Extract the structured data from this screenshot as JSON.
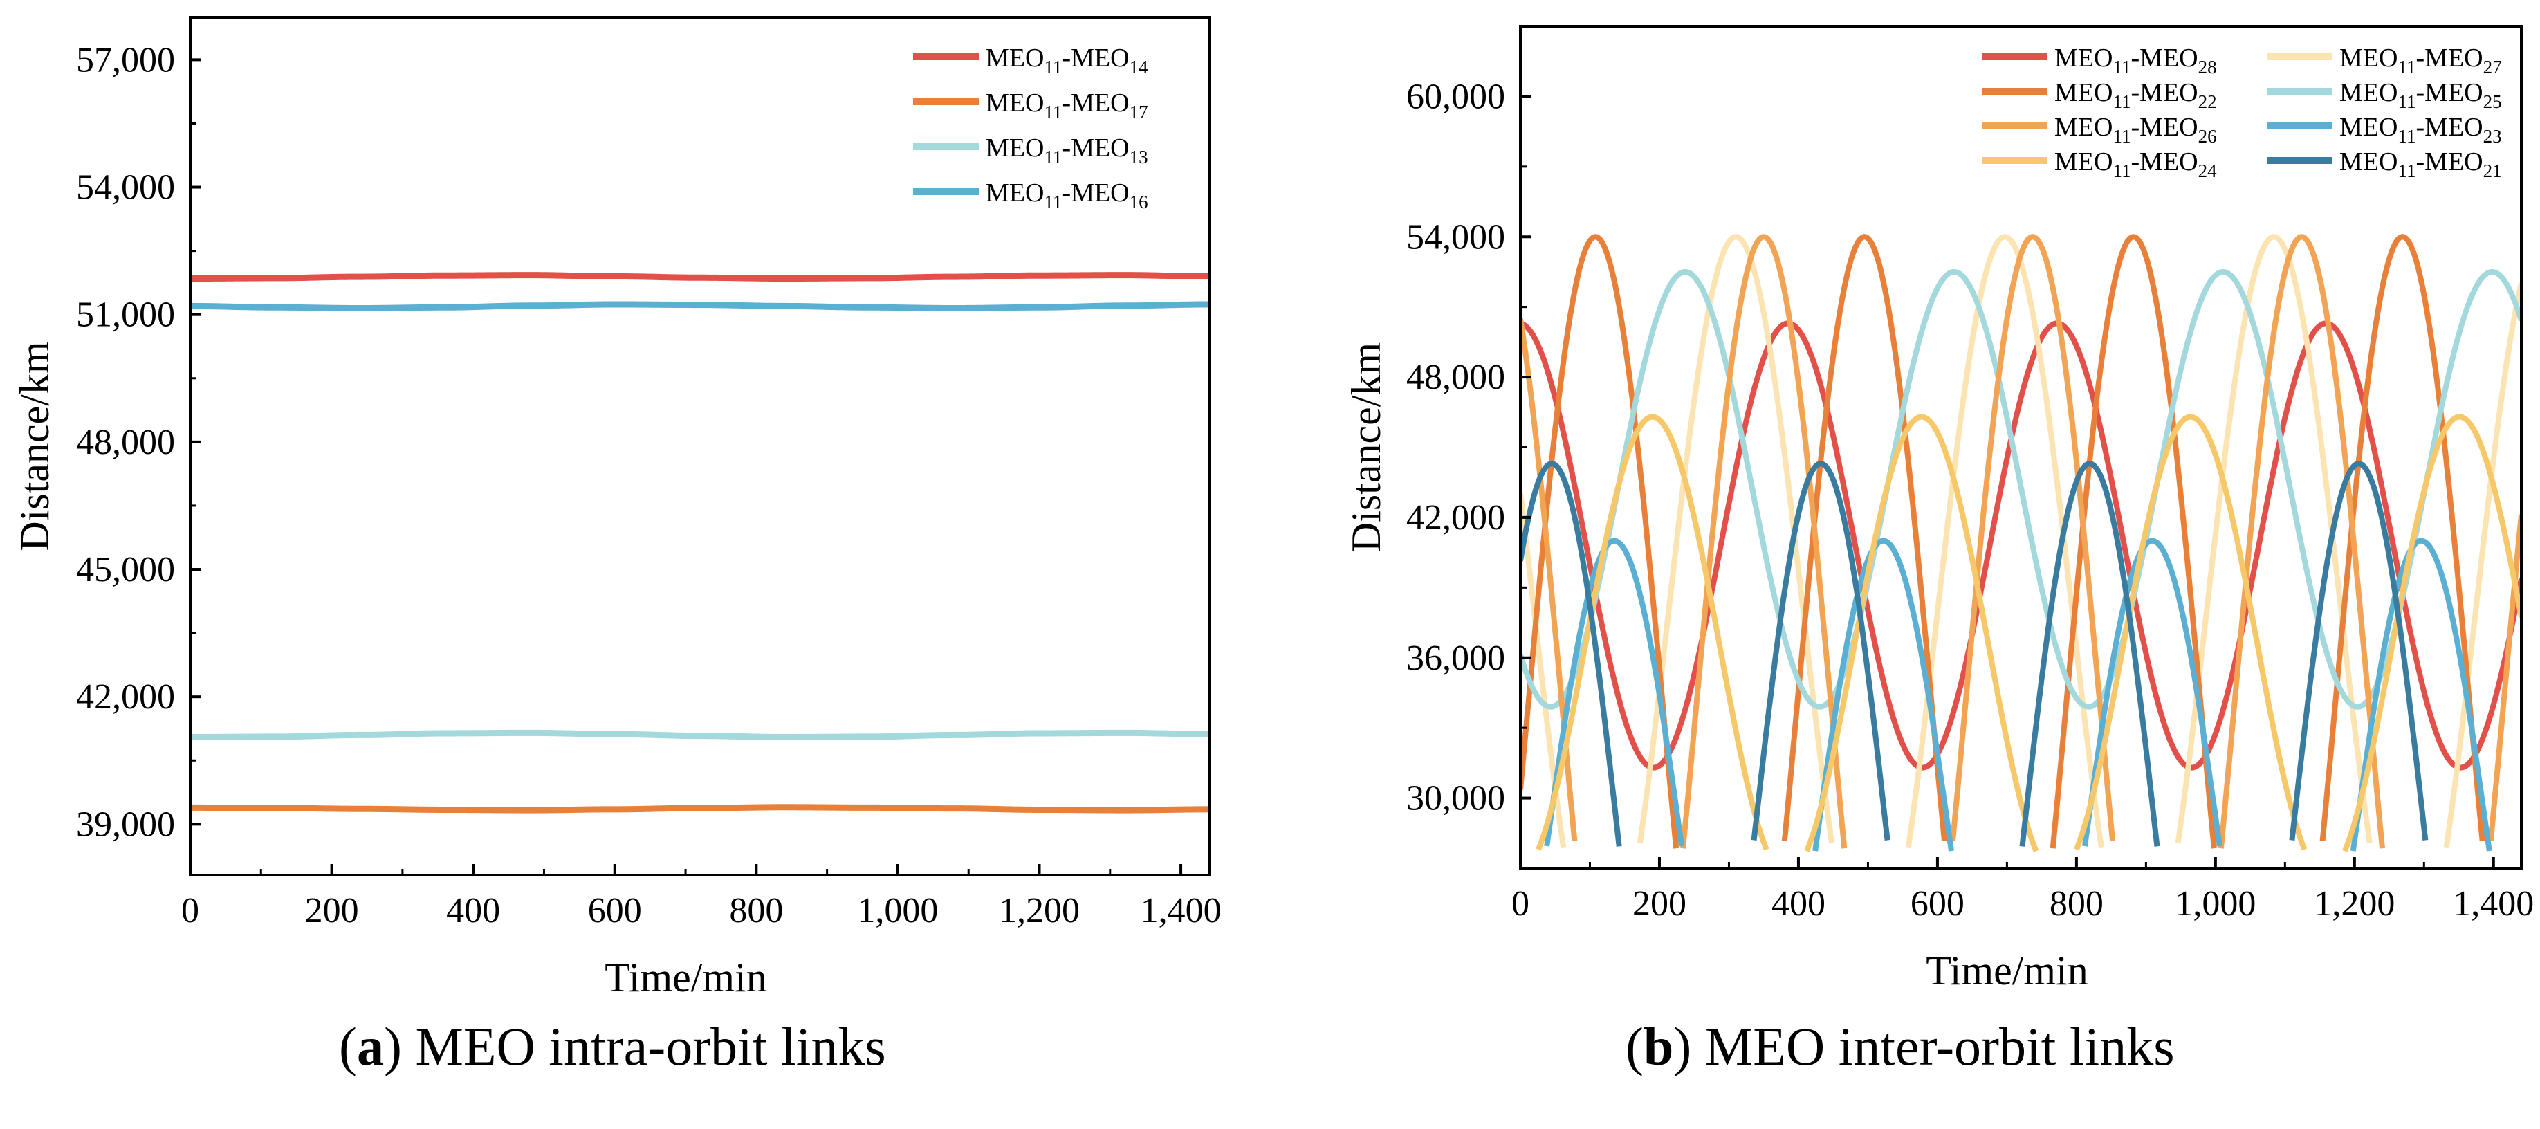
{
  "chart_data": [
    {
      "type": "line",
      "panel": "a",
      "caption_letter": "a",
      "caption_text": " MEO intra-orbit links",
      "xlabel": "Time/min",
      "ylabel": "Distance/km",
      "xlim": [
        0,
        1440
      ],
      "ylim": [
        37800,
        58000
      ],
      "xticks": [
        0,
        200,
        400,
        600,
        800,
        1000,
        1200,
        1400
      ],
      "xtick_labels": [
        "0",
        "200",
        "400",
        "600",
        "800",
        "1,000",
        "1,200",
        "1,400"
      ],
      "yticks": [
        39000,
        42000,
        45000,
        48000,
        51000,
        54000,
        57000
      ],
      "ytick_labels": [
        "39,000",
        "42,000",
        "45,000",
        "48,000",
        "51,000",
        "54,000",
        "57,000"
      ],
      "legend_position": "top-right",
      "series": [
        {
          "name": "MEO11-MEO14",
          "label_main": "MEO",
          "sub1": "11",
          "mid": "-MEO",
          "sub2": "14",
          "color": "#e2504a",
          "x": [
            0,
            120,
            240,
            360,
            480,
            600,
            720,
            840,
            960,
            1080,
            1200,
            1320,
            1440
          ],
          "values": [
            51850,
            51860,
            51890,
            51920,
            51930,
            51900,
            51870,
            51850,
            51860,
            51890,
            51920,
            51930,
            51900
          ]
        },
        {
          "name": "MEO11-MEO17",
          "label_main": "MEO",
          "sub1": "11",
          "mid": "-MEO",
          "sub2": "17",
          "color": "#e8803a",
          "x": [
            0,
            120,
            240,
            360,
            480,
            600,
            720,
            840,
            960,
            1080,
            1200,
            1320,
            1440
          ],
          "values": [
            39390,
            39380,
            39360,
            39340,
            39330,
            39350,
            39380,
            39400,
            39390,
            39370,
            39340,
            39330,
            39350
          ]
        },
        {
          "name": "MEO11-MEO13",
          "label_main": "MEO",
          "sub1": "11",
          "mid": "-MEO",
          "sub2": "13",
          "color": "#a3d8dc",
          "x": [
            0,
            120,
            240,
            360,
            480,
            600,
            720,
            840,
            960,
            1080,
            1200,
            1320,
            1440
          ],
          "values": [
            41050,
            41060,
            41100,
            41140,
            41150,
            41120,
            41080,
            41050,
            41060,
            41100,
            41140,
            41150,
            41120
          ]
        },
        {
          "name": "MEO11-MEO16",
          "label_main": "MEO",
          "sub1": "11",
          "mid": "-MEO",
          "sub2": "16",
          "color": "#5aafd2",
          "x": [
            0,
            120,
            240,
            360,
            480,
            600,
            720,
            840,
            960,
            1080,
            1200,
            1320,
            1440
          ],
          "values": [
            51200,
            51170,
            51150,
            51170,
            51210,
            51240,
            51230,
            51200,
            51170,
            51150,
            51170,
            51210,
            51240
          ]
        }
      ]
    },
    {
      "type": "line",
      "panel": "b",
      "caption_letter": "b",
      "caption_text": " MEO inter-orbit links",
      "xlabel": "Time/min",
      "ylabel": "Distance/km",
      "xlim": [
        0,
        1440
      ],
      "ylim": [
        27000,
        63000
      ],
      "xticks": [
        0,
        200,
        400,
        600,
        800,
        1000,
        1200,
        1400
      ],
      "xtick_labels": [
        "0",
        "200",
        "400",
        "600",
        "800",
        "1,000",
        "1,200",
        "1,400"
      ],
      "yticks": [
        30000,
        36000,
        42000,
        48000,
        54000,
        60000
      ],
      "ytick_labels": [
        "30,000",
        "36,000",
        "42,000",
        "48,000",
        "54,000",
        "60,000"
      ],
      "legend_position": "top-right",
      "series": [
        {
          "name": "MEO11-MEO28",
          "label_main": "MEO",
          "sub1": "11",
          "mid": "-MEO",
          "sub2": "28",
          "color": "#e2504a",
          "center": 40800,
          "amplitude": 9500,
          "period": 387,
          "peak_at": 385
        },
        {
          "name": "MEO11-MEO27",
          "label_main": "MEO",
          "sub1": "11",
          "mid": "-MEO",
          "sub2": "27",
          "color": "#fbe3b2",
          "center": 38000,
          "amplitude": 16000,
          "period": 387,
          "peak_at": 310
        },
        {
          "name": "MEO11-MEO22",
          "label_main": "MEO",
          "sub1": "11",
          "mid": "-MEO",
          "sub2": "22",
          "color": "#e8803a",
          "center": 34000,
          "amplitude": 20000,
          "period": 387,
          "peak_at": 495
        },
        {
          "name": "MEO11-MEO25",
          "label_main": "MEO",
          "sub1": "11",
          "mid": "-MEO",
          "sub2": "25",
          "color": "#a3d8dc",
          "center": 43200,
          "amplitude": 9300,
          "period": 387,
          "peak_at": 237
        },
        {
          "name": "MEO11-MEO26",
          "label_main": "MEO",
          "sub1": "11",
          "mid": "-MEO",
          "sub2": "26",
          "color": "#f2a354",
          "center": 34000,
          "amplitude": 20000,
          "period": 387,
          "peak_at": 350
        },
        {
          "name": "MEO11-MEO23",
          "label_main": "MEO",
          "sub1": "11",
          "mid": "-MEO",
          "sub2": "23",
          "color": "#5aafd2",
          "center": 28000,
          "amplitude": 13000,
          "period": 387,
          "peak_at": 135
        },
        {
          "name": "MEO11-MEO24",
          "label_main": "MEO",
          "sub1": "11",
          "mid": "-MEO",
          "sub2": "24",
          "color": "#f7c86a",
          "center": 36500,
          "amplitude": 9800,
          "period": 387,
          "peak_at": 190
        },
        {
          "name": "MEO11-MEO21",
          "label_main": "MEO",
          "sub1": "11",
          "mid": "-MEO",
          "sub2": "21",
          "color": "#3a7ba0",
          "center": 28000,
          "amplitude": 16300,
          "period": 387,
          "peak_at": 45
        }
      ]
    }
  ]
}
